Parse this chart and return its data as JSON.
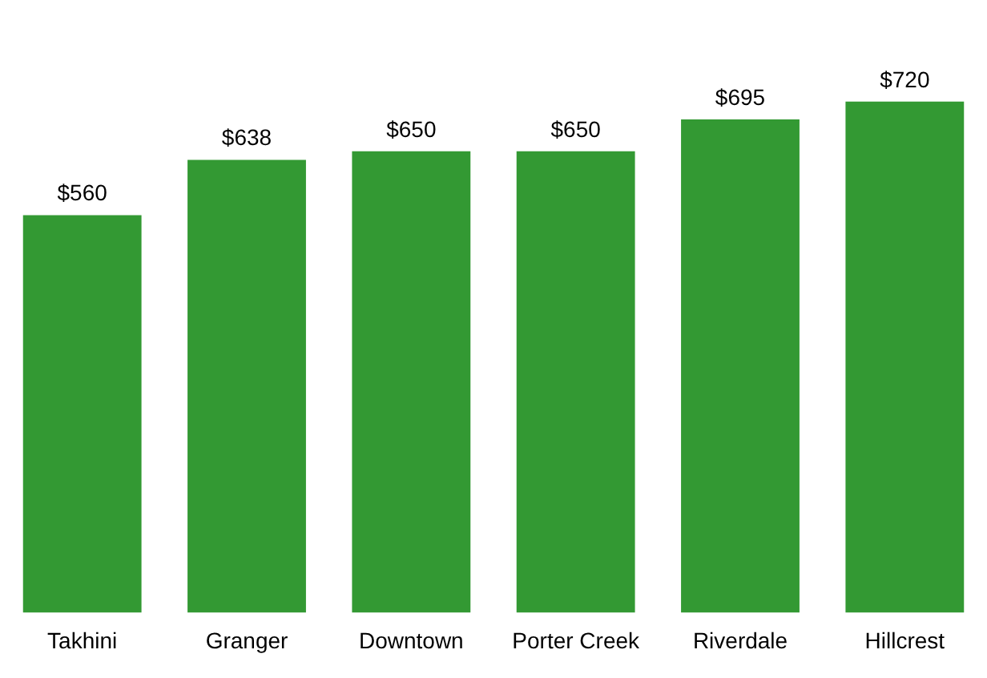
{
  "chart_data": {
    "type": "bar",
    "categories": [
      "Takhini",
      "Granger",
      "Downtown",
      "Porter Creek",
      "Riverdale",
      "Hillcrest"
    ],
    "values": [
      560,
      638,
      650,
      650,
      695,
      720
    ],
    "color": "#339933",
    "value_labels": [
      "$560",
      "$638",
      "$650",
      "$650",
      "$695",
      "$720"
    ],
    "grid": false,
    "legend": false,
    "tick_labels": "x"
  }
}
